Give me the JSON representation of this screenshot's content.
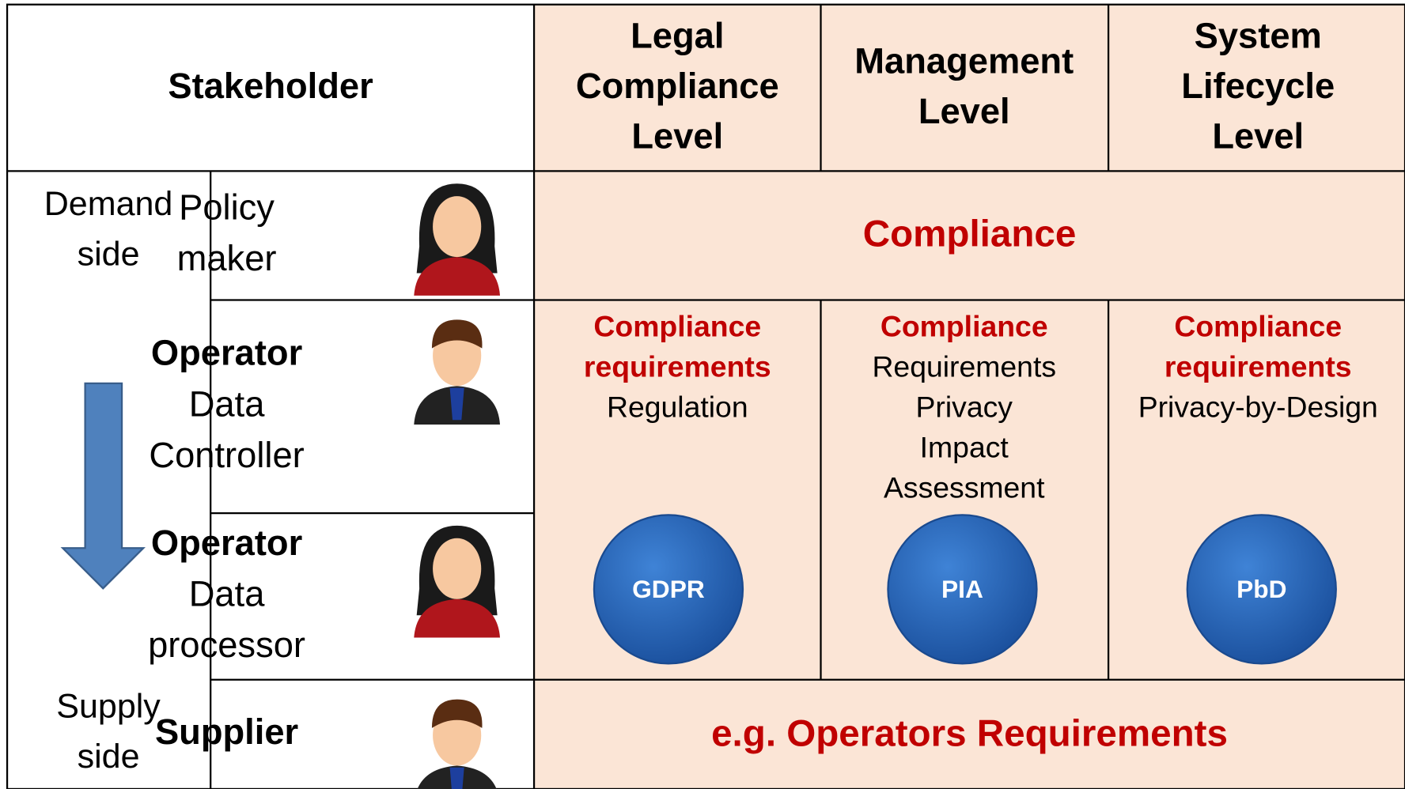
{
  "header": {
    "stakeholder": "Stakeholder",
    "levels": [
      [
        "Legal",
        "Compliance",
        "Level"
      ],
      [
        "Management",
        "Level"
      ],
      [
        "System",
        "Lifecycle",
        "Level"
      ]
    ]
  },
  "sides": {
    "demand": [
      "Demand",
      "side"
    ],
    "supply": [
      "Supply",
      "side"
    ]
  },
  "stakeholders": [
    {
      "bold": [],
      "lines": [
        "Policy",
        "maker"
      ]
    },
    {
      "bold": [
        "Operator"
      ],
      "lines": [
        "Data",
        "Controller"
      ]
    },
    {
      "bold": [
        "Operator"
      ],
      "lines": [
        "Data",
        "processor"
      ]
    },
    {
      "bold": [
        "Supplier"
      ],
      "lines": []
    }
  ],
  "compliance": "Compliance",
  "cells": [
    {
      "red": [
        "Compliance",
        "requirements"
      ],
      "black": [
        "Regulation"
      ],
      "badge": "GDPR"
    },
    {
      "red": [
        "Compliance"
      ],
      "black": [
        "Requirements",
        "Privacy",
        "Impact",
        "Assessment"
      ],
      "badge": "PIA"
    },
    {
      "red": [
        "Compliance",
        "requirements"
      ],
      "black": [
        "Privacy-by-Design"
      ],
      "badge": "PbD"
    }
  ],
  "footer": "e.g. Operators Requirements"
}
